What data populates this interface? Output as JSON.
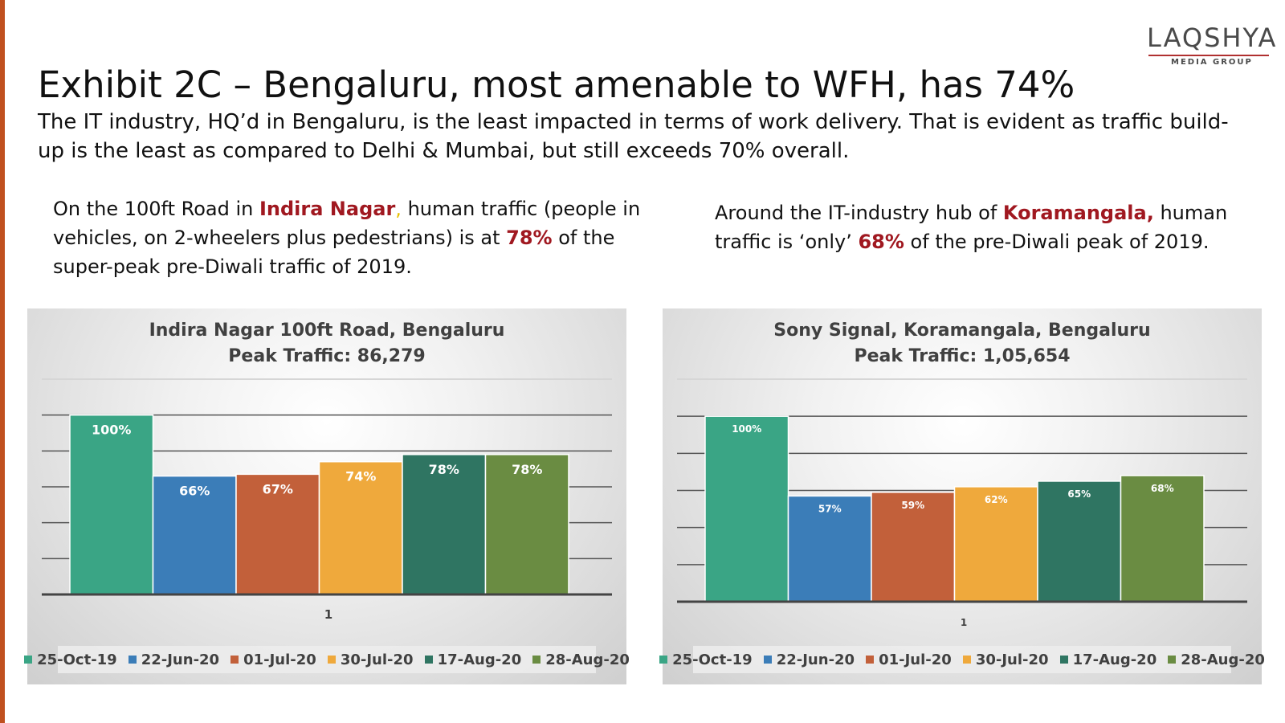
{
  "header": {
    "title": "Exhibit 2C – Bengaluru, most amenable to WFH, has 74%",
    "subtitle": "The IT industry, HQ’d in Bengaluru, is the least impacted in terms of work delivery. That is evident as traffic build-up is the least as compared to Delhi & Mumbai, but still exceeds 70% overall."
  },
  "logo": {
    "main": "LAQSHYA",
    "sub": "MEDIA GROUP"
  },
  "notes": {
    "left": {
      "p1": "On the 100ft Road in ",
      "hl1": "Indira Nagar",
      "p2": ",",
      "p3": " human traffic (people in vehicles, on 2-wheelers plus pedestrians) is at ",
      "hl2": "78%",
      "p4": " of the super-peak pre-Diwali traffic of 2019."
    },
    "right": {
      "p1": "Around the IT-industry hub of ",
      "hl1": "Koramangala,",
      "p2": " human traffic is ‘only’ ",
      "hl2": "68%",
      "p3": " of the pre-Diwali peak of 2019."
    }
  },
  "colors": {
    "accent_bar": "#c0501f",
    "highlight": "#a01820"
  },
  "chart_data": [
    {
      "type": "bar",
      "title": "Indira Nagar 100ft Road, Bengaluru",
      "subtitle": "Peak Traffic: 86,279",
      "categories": [
        "1"
      ],
      "ylim": [
        0,
        120
      ],
      "legend_position": "bottom",
      "series": [
        {
          "name": "25-Oct-19",
          "values": [
            100
          ],
          "label": "100%",
          "color": "#3aa585"
        },
        {
          "name": "22-Jun-20",
          "values": [
            66
          ],
          "label": "66%",
          "color": "#3b7db8"
        },
        {
          "name": "01-Jul-20",
          "values": [
            67
          ],
          "label": "67%",
          "color": "#c2603a"
        },
        {
          "name": "30-Jul-20",
          "values": [
            74
          ],
          "label": "74%",
          "color": "#efa93c"
        },
        {
          "name": "17-Aug-20",
          "values": [
            78
          ],
          "label": "78%",
          "color": "#2f7562"
        },
        {
          "name": "28-Aug-20",
          "values": [
            78
          ],
          "label": "78%",
          "color": "#6a8c42"
        }
      ]
    },
    {
      "type": "bar",
      "title": "Sony Signal, Koramangala, Bengaluru",
      "subtitle": "Peak Traffic: 1,05,654",
      "categories": [
        "1"
      ],
      "ylim": [
        0,
        120
      ],
      "legend_position": "bottom",
      "series": [
        {
          "name": "25-Oct-19",
          "values": [
            100
          ],
          "label": "100%",
          "color": "#3aa585"
        },
        {
          "name": "22-Jun-20",
          "values": [
            57
          ],
          "label": "57%",
          "color": "#3b7db8"
        },
        {
          "name": "01-Jul-20",
          "values": [
            59
          ],
          "label": "59%",
          "color": "#c2603a"
        },
        {
          "name": "30-Jul-20",
          "values": [
            62
          ],
          "label": "62%",
          "color": "#efa93c"
        },
        {
          "name": "17-Aug-20",
          "values": [
            65
          ],
          "label": "65%",
          "color": "#2f7562"
        },
        {
          "name": "28-Aug-20",
          "values": [
            68
          ],
          "label": "68%",
          "color": "#6a8c42"
        }
      ]
    }
  ]
}
